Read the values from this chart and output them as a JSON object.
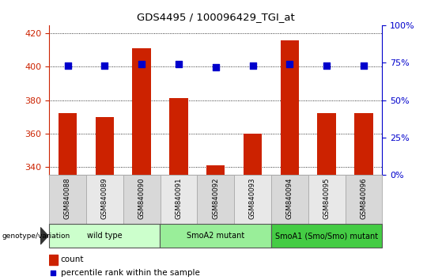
{
  "title": "GDS4495 / 100096429_TGI_at",
  "samples": [
    "GSM840088",
    "GSM840089",
    "GSM840090",
    "GSM840091",
    "GSM840092",
    "GSM840093",
    "GSM840094",
    "GSM840095",
    "GSM840096"
  ],
  "counts": [
    372,
    370,
    411,
    381,
    341,
    360,
    416,
    372,
    372
  ],
  "percentile_ranks": [
    73,
    73,
    74,
    74,
    72,
    73,
    74,
    73,
    73
  ],
  "ylim_left": [
    335,
    425
  ],
  "ylim_right": [
    0,
    100
  ],
  "yticks_left": [
    340,
    360,
    380,
    400,
    420
  ],
  "yticks_right": [
    0,
    25,
    50,
    75,
    100
  ],
  "bar_color": "#cc2200",
  "dot_color": "#0000cc",
  "bar_bottom": 335,
  "groups": [
    {
      "label": "wild type",
      "start": 0,
      "end": 3,
      "color": "#ccffcc"
    },
    {
      "label": "SmoA2 mutant",
      "start": 3,
      "end": 6,
      "color": "#99ee99"
    },
    {
      "label": "SmoA1 (Smo/Smo) mutant",
      "start": 6,
      "end": 9,
      "color": "#44cc44"
    }
  ],
  "legend_count_label": "count",
  "legend_pct_label": "percentile rank within the sample",
  "genotype_label": "genotype/variation",
  "tick_color_left": "#cc2200",
  "tick_color_right": "#0000cc",
  "dot_size": 35,
  "bar_width": 0.5
}
